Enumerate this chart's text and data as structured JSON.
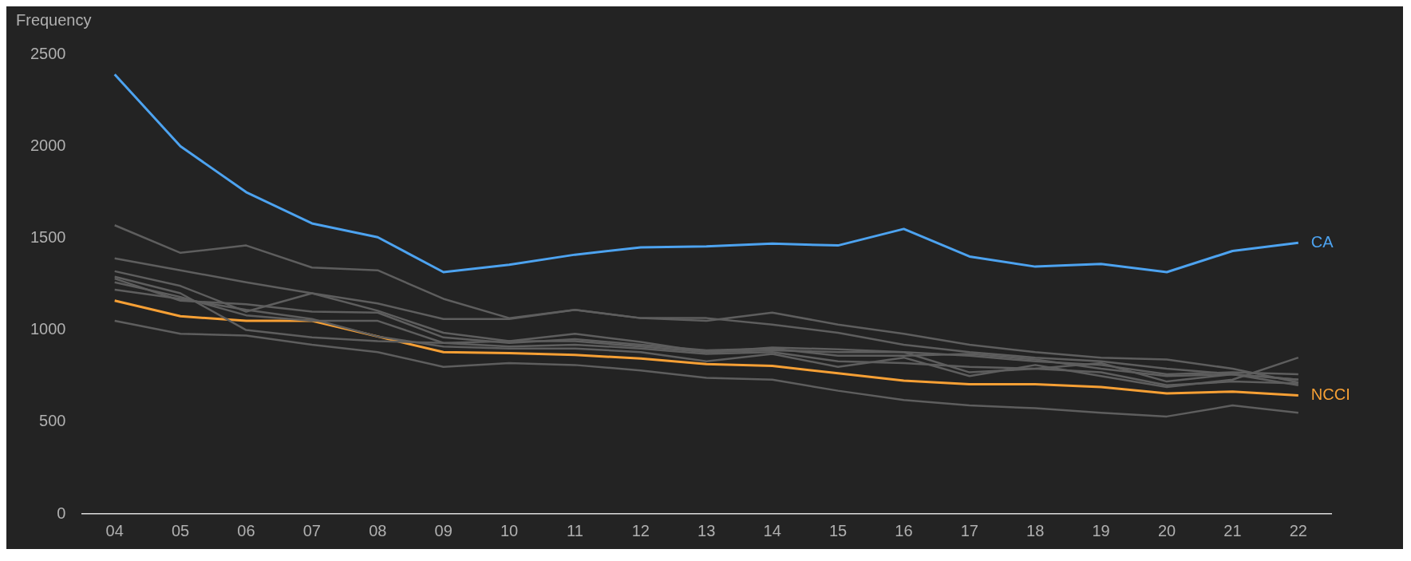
{
  "chart_data": {
    "type": "line",
    "ylabel": "Frequency",
    "categories": [
      "04",
      "05",
      "06",
      "07",
      "08",
      "09",
      "10",
      "11",
      "12",
      "13",
      "14",
      "15",
      "16",
      "17",
      "18",
      "19",
      "20",
      "21",
      "22"
    ],
    "ylim": [
      0,
      2500
    ],
    "yticks": [
      0,
      500,
      1000,
      1500,
      2000,
      2500
    ],
    "grid": false,
    "legend": false,
    "marker": "none",
    "line_style": "solid",
    "series": [
      {
        "color": "#5e5e5e",
        "values": [
          1570,
          1420,
          1460,
          1340,
          1325,
          1170,
          1065,
          1110,
          1065,
          1050,
          1095,
          1030,
          980,
          920,
          880,
          850,
          840,
          790,
          715
        ]
      },
      {
        "color": "#5e5e5e",
        "values": [
          1390,
          1325,
          1260,
          1200,
          1145,
          1060,
          1060,
          1110,
          1065,
          1065,
          1030,
          985,
          920,
          880,
          850,
          830,
          790,
          760,
          730
        ]
      },
      {
        "color": "#5e5e5e",
        "values": [
          1320,
          1240,
          1100,
          1200,
          1105,
          985,
          940,
          980,
          935,
          880,
          905,
          895,
          880,
          860,
          830,
          810,
          760,
          770,
          760
        ]
      },
      {
        "color": "#5e5e5e",
        "values": [
          1280,
          1160,
          1140,
          1100,
          1095,
          960,
          930,
          950,
          920,
          890,
          900,
          860,
          860,
          870,
          840,
          790,
          750,
          760,
          730
        ]
      },
      {
        "color": "#5e5e5e",
        "values": [
          1260,
          1180,
          1080,
          1050,
          1050,
          930,
          910,
          920,
          900,
          870,
          880,
          830,
          820,
          800,
          790,
          770,
          700,
          720,
          710
        ]
      },
      {
        "color": "#5e5e5e",
        "values": [
          1220,
          1170,
          1110,
          1060,
          965,
          910,
          900,
          900,
          880,
          830,
          870,
          800,
          850,
          750,
          810,
          750,
          690,
          730,
          850
        ]
      },
      {
        "color": "#5e5e5e",
        "values": [
          1050,
          980,
          970,
          920,
          880,
          800,
          820,
          810,
          780,
          740,
          730,
          670,
          620,
          590,
          575,
          550,
          530,
          590,
          550
        ]
      },
      {
        "color": "#5e5e5e",
        "values": [
          1290,
          1200,
          1000,
          960,
          940,
          930,
          940,
          940,
          910,
          880,
          890,
          880,
          880,
          770,
          790,
          820,
          720,
          760,
          700
        ]
      },
      {
        "name": "NCCI",
        "color": "#f7a035",
        "values": [
          1160,
          1075,
          1050,
          1050,
          965,
          880,
          875,
          865,
          845,
          815,
          805,
          765,
          725,
          705,
          705,
          690,
          655,
          665,
          645
        ]
      },
      {
        "name": "CA",
        "color": "#4da3f0",
        "values": [
          2390,
          2000,
          1750,
          1580,
          1505,
          1315,
          1355,
          1410,
          1450,
          1455,
          1470,
          1460,
          1550,
          1400,
          1345,
          1360,
          1315,
          1430,
          1475
        ]
      }
    ]
  }
}
